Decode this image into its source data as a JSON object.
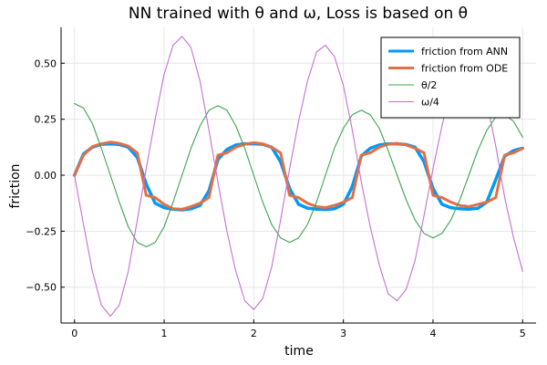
{
  "chart_data": {
    "type": "line",
    "title": "NN trained with θ and ω, Loss is based on θ",
    "xlabel": "time",
    "ylabel": "friction",
    "xlim": [
      -0.15,
      5.15
    ],
    "ylim": [
      -0.66,
      0.66
    ],
    "xticks": [
      0,
      1,
      2,
      3,
      4,
      5
    ],
    "yticks": [
      -0.5,
      -0.25,
      0,
      0.25,
      0.5
    ],
    "ytick_labels": [
      "−0.50",
      "−0.25",
      "0.00",
      "0.25",
      "0.50"
    ],
    "grid": true,
    "legend_position": "top-right",
    "x": [
      0,
      0.1,
      0.2,
      0.3,
      0.4,
      0.5,
      0.6,
      0.7,
      0.8,
      0.9,
      1.0,
      1.1,
      1.2,
      1.3,
      1.4,
      1.5,
      1.6,
      1.7,
      1.8,
      1.9,
      2.0,
      2.1,
      2.2,
      2.3,
      2.4,
      2.5,
      2.6,
      2.7,
      2.8,
      2.9,
      3.0,
      3.1,
      3.2,
      3.3,
      3.4,
      3.5,
      3.6,
      3.7,
      3.8,
      3.9,
      4.0,
      4.1,
      4.2,
      4.3,
      4.4,
      4.5,
      4.6,
      4.7,
      4.8,
      4.9,
      5.0
    ],
    "series": [
      {
        "name": "friction from ANN",
        "color": "#009af9",
        "width": 3.5,
        "values": [
          0.0,
          0.095,
          0.125,
          0.138,
          0.14,
          0.137,
          0.125,
          0.08,
          -0.04,
          -0.125,
          -0.145,
          -0.152,
          -0.155,
          -0.15,
          -0.135,
          -0.07,
          0.07,
          0.115,
          0.135,
          0.14,
          0.14,
          0.138,
          0.125,
          0.06,
          -0.06,
          -0.13,
          -0.147,
          -0.152,
          -0.153,
          -0.15,
          -0.13,
          -0.05,
          0.085,
          0.12,
          0.135,
          0.14,
          0.14,
          0.137,
          0.125,
          0.06,
          -0.06,
          -0.13,
          -0.145,
          -0.15,
          -0.152,
          -0.148,
          -0.12,
          -0.02,
          0.085,
          0.11,
          0.12
        ]
      },
      {
        "name": "friction from ODE",
        "color": "#e26f46",
        "width": 3,
        "values": [
          0.0,
          0.09,
          0.128,
          0.14,
          0.148,
          0.142,
          0.13,
          0.1,
          -0.09,
          -0.1,
          -0.13,
          -0.15,
          -0.152,
          -0.14,
          -0.125,
          -0.1,
          0.09,
          0.1,
          0.125,
          0.138,
          0.145,
          0.14,
          0.125,
          0.1,
          -0.09,
          -0.1,
          -0.125,
          -0.14,
          -0.145,
          -0.135,
          -0.12,
          -0.1,
          0.09,
          0.1,
          0.125,
          0.138,
          0.142,
          0.135,
          0.12,
          0.1,
          -0.09,
          -0.1,
          -0.12,
          -0.135,
          -0.14,
          -0.13,
          -0.12,
          -0.1,
          0.09,
          0.1,
          0.12
        ]
      },
      {
        "name": "θ/2",
        "color": "#3da44d",
        "width": 1.1,
        "values": [
          0.32,
          0.3,
          0.23,
          0.12,
          0.0,
          -0.12,
          -0.23,
          -0.3,
          -0.32,
          -0.3,
          -0.23,
          -0.12,
          0.0,
          0.12,
          0.22,
          0.29,
          0.31,
          0.29,
          0.22,
          0.12,
          0.0,
          -0.12,
          -0.22,
          -0.28,
          -0.3,
          -0.28,
          -0.22,
          -0.12,
          0.0,
          0.12,
          0.21,
          0.27,
          0.29,
          0.27,
          0.21,
          0.11,
          0.0,
          -0.11,
          -0.2,
          -0.26,
          -0.28,
          -0.26,
          -0.2,
          -0.11,
          0.0,
          0.11,
          0.2,
          0.26,
          0.27,
          0.24,
          0.17
        ]
      },
      {
        "name": "ω/4",
        "color": "#c271d2",
        "width": 1.1,
        "values": [
          0.0,
          -0.22,
          -0.43,
          -0.58,
          -0.63,
          -0.58,
          -0.43,
          -0.2,
          0.03,
          0.25,
          0.45,
          0.58,
          0.62,
          0.57,
          0.42,
          0.2,
          -0.03,
          -0.25,
          -0.43,
          -0.56,
          -0.6,
          -0.55,
          -0.41,
          -0.2,
          0.03,
          0.24,
          0.42,
          0.55,
          0.58,
          0.53,
          0.4,
          0.2,
          -0.03,
          -0.23,
          -0.4,
          -0.53,
          -0.56,
          -0.51,
          -0.38,
          -0.18,
          0.03,
          0.22,
          0.38,
          0.48,
          0.52,
          0.46,
          0.33,
          0.13,
          -0.1,
          -0.28,
          -0.43
        ]
      }
    ]
  }
}
